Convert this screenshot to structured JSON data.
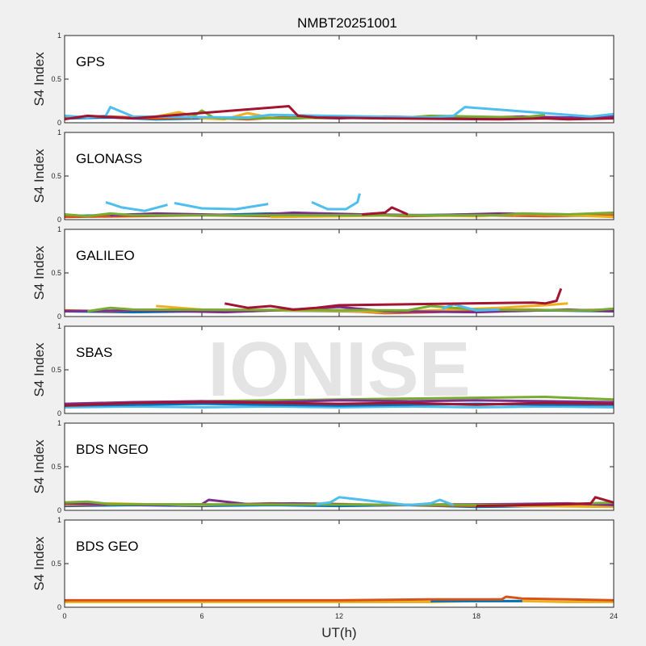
{
  "chart_data": {
    "type": "line",
    "title": "NMBT20251001",
    "xlabel": "UT(h)",
    "xlim": [
      0,
      24
    ],
    "xticks": [
      "0",
      "6",
      "12",
      "18",
      "24"
    ],
    "watermark": "IONISE",
    "panels": [
      {
        "label": "GPS",
        "ylabel": "S4 Index",
        "ylim": [
          0,
          1
        ],
        "yticks": [
          "0",
          "0.5",
          "1"
        ],
        "series": [
          {
            "color": "#0072BD",
            "x": [
              0,
              2,
              4,
              6,
              8,
              10,
              12,
              14,
              16,
              18,
              20,
              22,
              24
            ],
            "y": [
              0.05,
              0.06,
              0.04,
              0.05,
              0.06,
              0.05,
              0.07,
              0.06,
              0.05,
              0.06,
              0.05,
              0.06,
              0.05
            ]
          },
          {
            "color": "#D95319",
            "x": [
              0,
              2,
              4,
              6,
              8,
              10,
              12,
              14,
              16,
              18,
              20,
              22,
              24
            ],
            "y": [
              0.06,
              0.07,
              0.05,
              0.06,
              0.04,
              0.07,
              0.06,
              0.05,
              0.07,
              0.06,
              0.07,
              0.05,
              0.06
            ]
          },
          {
            "color": "#EDB120",
            "x": [
              4,
              5,
              6,
              7,
              8,
              9
            ],
            "y": [
              0.07,
              0.12,
              0.05,
              0.04,
              0.11,
              0.06
            ]
          },
          {
            "color": "#7E2F8E",
            "x": [
              10,
              12,
              14,
              16,
              18,
              20,
              22,
              24
            ],
            "y": [
              0.06,
              0.05,
              0.07,
              0.06,
              0.05,
              0.07,
              0.06,
              0.07
            ]
          },
          {
            "color": "#77AC30",
            "x": [
              5.5,
              6,
              6.5,
              7,
              15,
              16,
              20,
              21
            ],
            "y": [
              0.05,
              0.14,
              0.06,
              0.05,
              0.06,
              0.08,
              0.06,
              0.09
            ]
          },
          {
            "color": "#4DBEEE",
            "x": [
              0,
              1,
              1.8,
              2,
              3,
              8,
              9,
              16,
              17,
              17.5,
              23,
              24
            ],
            "y": [
              0.08,
              0.06,
              0.08,
              0.18,
              0.07,
              0.06,
              0.09,
              0.06,
              0.08,
              0.18,
              0.07,
              0.1
            ]
          },
          {
            "color": "#A2142F",
            "x": [
              0,
              1,
              3,
              9.8,
              10.2,
              11,
              14,
              19,
              21,
              22,
              24
            ],
            "y": [
              0.04,
              0.08,
              0.05,
              0.19,
              0.08,
              0.06,
              0.05,
              0.04,
              0.05,
              0.04,
              0.05
            ]
          }
        ]
      },
      {
        "label": "GLONASS",
        "ylabel": "S4 Index",
        "ylim": [
          0,
          1
        ],
        "yticks": [
          "0",
          "0.5",
          "1"
        ],
        "series": [
          {
            "color": "#4DBEEE",
            "x": [
              1.8,
              2.5,
              3.5,
              4.5
            ],
            "y": [
              0.2,
              0.14,
              0.1,
              0.17
            ]
          },
          {
            "color": "#4DBEEE",
            "x": [
              4.8,
              6,
              7.5,
              8.9
            ],
            "y": [
              0.19,
              0.13,
              0.12,
              0.18
            ]
          },
          {
            "color": "#4DBEEE",
            "x": [
              10.8,
              11.5,
              12.3,
              12.8,
              12.9
            ],
            "y": [
              0.2,
              0.12,
              0.12,
              0.2,
              0.3
            ]
          },
          {
            "color": "#0072BD",
            "x": [
              0,
              3,
              6,
              9,
              12,
              15,
              18,
              21,
              24
            ],
            "y": [
              0.04,
              0.06,
              0.05,
              0.07,
              0.05,
              0.05,
              0.06,
              0.05,
              0.04
            ]
          },
          {
            "color": "#D95319",
            "x": [
              0,
              3,
              6,
              9,
              12,
              15,
              18,
              21,
              24
            ],
            "y": [
              0.03,
              0.04,
              0.05,
              0.04,
              0.06,
              0.04,
              0.05,
              0.04,
              0.05
            ]
          },
          {
            "color": "#EDB120",
            "x": [
              9,
              12,
              15,
              18,
              20,
              22,
              24
            ],
            "y": [
              0.03,
              0.04,
              0.05,
              0.04,
              0.06,
              0.05,
              0.03
            ]
          },
          {
            "color": "#7E2F8E",
            "x": [
              2,
              4,
              6,
              8,
              10,
              13,
              16,
              19,
              22
            ],
            "y": [
              0.05,
              0.07,
              0.06,
              0.05,
              0.08,
              0.06,
              0.05,
              0.07,
              0.06
            ]
          },
          {
            "color": "#77AC30",
            "x": [
              0,
              1,
              2,
              3,
              19,
              20,
              22,
              24
            ],
            "y": [
              0.06,
              0.04,
              0.07,
              0.05,
              0.05,
              0.07,
              0.06,
              0.08
            ]
          },
          {
            "color": "#A2142F",
            "x": [
              13,
              14,
              14.3,
              15
            ],
            "y": [
              0.06,
              0.08,
              0.14,
              0.06
            ]
          }
        ]
      },
      {
        "label": "GALILEO",
        "ylabel": "S4 Index",
        "ylim": [
          0,
          1
        ],
        "yticks": [
          "0",
          "0.5",
          "1"
        ],
        "series": [
          {
            "color": "#0072BD",
            "x": [
              0,
              3,
              6,
              9,
              12,
              15,
              18,
              21,
              24
            ],
            "y": [
              0.06,
              0.05,
              0.06,
              0.07,
              0.06,
              0.05,
              0.06,
              0.07,
              0.06
            ]
          },
          {
            "color": "#D95319",
            "x": [
              0,
              2,
              4,
              6,
              8,
              10,
              12,
              14,
              16,
              18,
              20,
              22,
              24
            ],
            "y": [
              0.07,
              0.06,
              0.08,
              0.07,
              0.06,
              0.08,
              0.07,
              0.04,
              0.05,
              0.07,
              0.08,
              0.07,
              0.08
            ]
          },
          {
            "color": "#EDB120",
            "x": [
              4,
              5,
              6,
              13,
              14,
              16,
              19,
              21,
              22
            ],
            "y": [
              0.12,
              0.1,
              0.08,
              0.06,
              0.05,
              0.07,
              0.1,
              0.13,
              0.15
            ]
          },
          {
            "color": "#7E2F8E",
            "x": [
              0,
              3,
              7,
              10,
              12,
              14,
              18,
              22,
              24
            ],
            "y": [
              0.06,
              0.07,
              0.05,
              0.08,
              0.11,
              0.06,
              0.05,
              0.08,
              0.06
            ]
          },
          {
            "color": "#77AC30",
            "x": [
              1,
              2,
              3,
              15,
              16,
              18,
              23,
              24
            ],
            "y": [
              0.06,
              0.1,
              0.08,
              0.07,
              0.12,
              0.08,
              0.07,
              0.09
            ]
          },
          {
            "color": "#4DBEEE",
            "x": [
              16.5,
              17,
              18,
              19
            ],
            "y": [
              0.09,
              0.14,
              0.07,
              0.08
            ]
          },
          {
            "color": "#A2142F",
            "x": [
              7,
              8,
              9,
              10,
              11,
              12,
              20.5,
              21,
              21.5,
              21.7
            ],
            "y": [
              0.15,
              0.1,
              0.12,
              0.08,
              0.1,
              0.13,
              0.16,
              0.15,
              0.18,
              0.32
            ]
          }
        ]
      },
      {
        "label": "SBAS",
        "ylabel": "S4 Index",
        "ylim": [
          0,
          1
        ],
        "yticks": [
          "0",
          "0.5",
          "1"
        ],
        "series": [
          {
            "color": "#4DBEEE",
            "x": [
              0,
              3,
              6,
              9,
              12,
              15,
              18,
              21,
              24
            ],
            "y": [
              0.07,
              0.08,
              0.07,
              0.08,
              0.07,
              0.08,
              0.07,
              0.08,
              0.07
            ]
          },
          {
            "color": "#0072BD",
            "x": [
              0,
              3,
              6,
              9,
              12,
              15,
              18,
              21,
              24
            ],
            "y": [
              0.09,
              0.1,
              0.11,
              0.1,
              0.09,
              0.1,
              0.11,
              0.1,
              0.1
            ]
          },
          {
            "color": "#77AC30",
            "x": [
              0,
              3,
              6,
              9,
              12,
              15,
              18,
              21,
              24
            ],
            "y": [
              0.1,
              0.12,
              0.14,
              0.15,
              0.16,
              0.17,
              0.18,
              0.19,
              0.16
            ]
          },
          {
            "color": "#7E2F8E",
            "x": [
              0,
              3,
              6,
              9,
              12,
              15,
              18,
              21,
              24
            ],
            "y": [
              0.11,
              0.13,
              0.14,
              0.13,
              0.15,
              0.14,
              0.15,
              0.14,
              0.13
            ]
          },
          {
            "color": "#A2142F",
            "x": [
              0,
              3,
              6,
              9,
              12,
              15,
              18,
              21,
              24
            ],
            "y": [
              0.09,
              0.12,
              0.13,
              0.12,
              0.11,
              0.12,
              0.1,
              0.12,
              0.11
            ]
          }
        ]
      },
      {
        "label": "BDS NGEO",
        "ylabel": "S4 Index",
        "ylim": [
          0,
          1
        ],
        "yticks": [
          "0",
          "0.5",
          "1"
        ],
        "series": [
          {
            "color": "#0072BD",
            "x": [
              0,
              3,
              6,
              9,
              12,
              15,
              18,
              21,
              24
            ],
            "y": [
              0.05,
              0.06,
              0.05,
              0.06,
              0.05,
              0.06,
              0.04,
              0.05,
              0.06
            ]
          },
          {
            "color": "#D95319",
            "x": [
              0,
              3,
              6,
              9,
              12,
              15,
              18,
              21,
              24
            ],
            "y": [
              0.06,
              0.07,
              0.06,
              0.08,
              0.07,
              0.06,
              0.05,
              0.06,
              0.07
            ]
          },
          {
            "color": "#EDB120",
            "x": [
              0,
              2,
              5,
              8,
              11,
              14,
              17,
              20,
              24
            ],
            "y": [
              0.07,
              0.08,
              0.06,
              0.07,
              0.08,
              0.06,
              0.07,
              0.05,
              0.04
            ]
          },
          {
            "color": "#7E2F8E",
            "x": [
              0,
              4,
              6,
              6.3,
              8,
              10,
              14,
              19,
              22,
              24
            ],
            "y": [
              0.08,
              0.06,
              0.07,
              0.12,
              0.07,
              0.08,
              0.06,
              0.07,
              0.08,
              0.06
            ]
          },
          {
            "color": "#77AC30",
            "x": [
              0,
              1,
              2,
              21,
              24
            ],
            "y": [
              0.09,
              0.1,
              0.07,
              0.06,
              0.09
            ]
          },
          {
            "color": "#4DBEEE",
            "x": [
              11,
              11.6,
              12,
              15,
              16,
              16.4,
              17
            ],
            "y": [
              0.07,
              0.09,
              0.15,
              0.06,
              0.08,
              0.12,
              0.06
            ]
          },
          {
            "color": "#A2142F",
            "x": [
              18,
              20,
              22,
              23,
              23.2,
              24
            ],
            "y": [
              0.05,
              0.06,
              0.07,
              0.08,
              0.15,
              0.09
            ]
          }
        ]
      },
      {
        "label": "BDS GEO",
        "ylabel": "S4 Index",
        "ylim": [
          0,
          1
        ],
        "yticks": [
          "0",
          "0.5",
          "1"
        ],
        "series": [
          {
            "color": "#EDB120",
            "x": [
              0,
              4,
              8,
              12,
              16,
              18,
              20,
              22,
              24
            ],
            "y": [
              0.06,
              0.06,
              0.06,
              0.06,
              0.06,
              0.07,
              0.07,
              0.06,
              0.06
            ]
          },
          {
            "color": "#0072BD",
            "x": [
              16,
              18,
              20
            ],
            "y": [
              0.07,
              0.07,
              0.07
            ]
          },
          {
            "color": "#D95319",
            "x": [
              0,
              4,
              8,
              12,
              16,
              18,
              19.1,
              19.3,
              20,
              22,
              24
            ],
            "y": [
              0.08,
              0.08,
              0.08,
              0.08,
              0.09,
              0.09,
              0.09,
              0.12,
              0.1,
              0.09,
              0.08
            ]
          }
        ]
      }
    ]
  }
}
